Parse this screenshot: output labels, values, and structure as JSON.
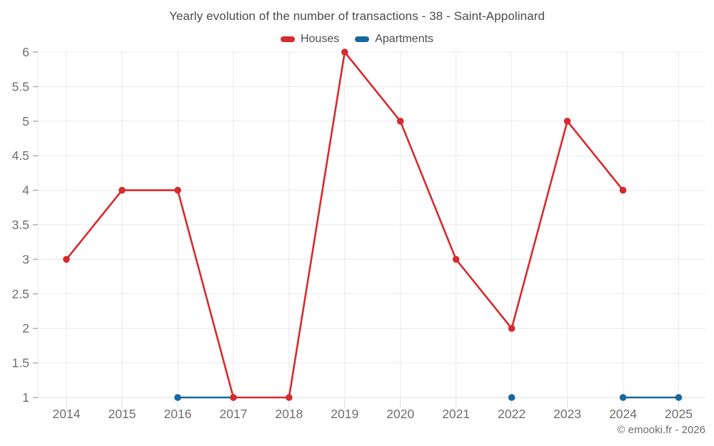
{
  "header": {
    "title": "Yearly evolution of the number of transactions - 38 - Saint-Appolinard"
  },
  "footer": {
    "copyright": "© emooki.fr - 2026"
  },
  "chart_data": {
    "type": "line",
    "title": "Yearly evolution of the number of transactions - 38 - Saint-Appolinard",
    "categories": [
      "2014",
      "2015",
      "2016",
      "2017",
      "2018",
      "2019",
      "2020",
      "2021",
      "2022",
      "2023",
      "2024",
      "2025"
    ],
    "series": [
      {
        "name": "Houses",
        "color": "#d62a2e",
        "values": [
          3,
          4,
          4,
          1,
          1,
          6,
          5,
          3,
          2,
          5,
          4,
          null
        ]
      },
      {
        "name": "Apartments",
        "color": "#16699d",
        "values": [
          null,
          null,
          1,
          1,
          null,
          null,
          null,
          null,
          1,
          null,
          1,
          1
        ]
      }
    ],
    "ylim": [
      1,
      6
    ],
    "ytick_step": 0.5,
    "ytick_labels": [
      "1",
      "1.5",
      "2",
      "2.5",
      "3",
      "3.5",
      "4",
      "4.5",
      "5",
      "5.5",
      "6"
    ],
    "xlabel": "",
    "ylabel": "",
    "grid": true,
    "legend_position": "top",
    "marker_radius": 4.8,
    "line_width": 2.6,
    "grid_color": "#e9e9e9",
    "axis_label_color": "#6e6e6e"
  }
}
